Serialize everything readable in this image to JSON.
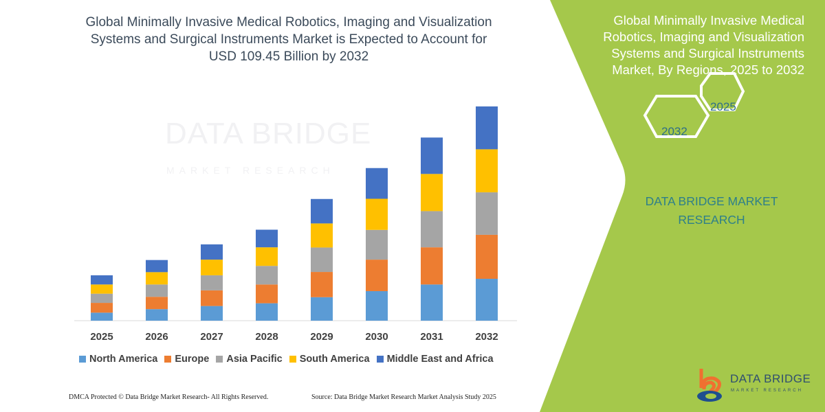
{
  "title": "Global Minimally Invasive Medical Robotics, Imaging and Visualization Systems and Surgical Instruments Market is Expected to Account for USD 109.45 Billion by 2032",
  "side_panel": {
    "title": "Global Minimally Invasive Medical Robotics, Imaging and Visualization Systems and Surgical Instruments Market, By Regions, 2025 to 2032",
    "hex_start": "2025",
    "hex_end": "2032",
    "brand": "DATA BRIDGE MARKET RESEARCH",
    "background_color": "#a5c84b"
  },
  "watermark": {
    "name": "DATA BRIDGE",
    "sub": "MARKET RESEARCH"
  },
  "logo": {
    "name": "DATA BRIDGE",
    "sub": "MARKET RESEARCH"
  },
  "footer": {
    "copyright": "DMCA Protected © Data Bridge Market Research- All Rights Reserved.",
    "source": "Source: Data Bridge Market Research Market Analysis Study 2025"
  },
  "chart_data": {
    "type": "bar",
    "stacked": true,
    "title": "",
    "xlabel": "",
    "ylabel": "",
    "grid": false,
    "legend_position": "bottom",
    "categories": [
      "2025",
      "2026",
      "2027",
      "2028",
      "2029",
      "2030",
      "2031",
      "2032"
    ],
    "series": [
      {
        "name": "North America",
        "color": "#5b9bd5",
        "values": [
          4.1,
          5.9,
          7.5,
          8.9,
          12.0,
          15.1,
          18.5,
          21.4
        ]
      },
      {
        "name": "Europe",
        "color": "#ed7d31",
        "values": [
          5.0,
          6.3,
          8.0,
          9.6,
          12.9,
          16.1,
          19.0,
          22.5
        ]
      },
      {
        "name": "Asia Pacific",
        "color": "#a5a5a5",
        "values": [
          4.7,
          6.3,
          7.7,
          9.5,
          12.5,
          15.2,
          18.5,
          21.7
        ]
      },
      {
        "name": "South America",
        "color": "#ffc000",
        "values": [
          4.7,
          6.3,
          8.0,
          9.5,
          12.3,
          15.9,
          19.0,
          22.0
        ]
      },
      {
        "name": "Middle East and Africa",
        "color": "#4472c4",
        "values": [
          4.7,
          6.2,
          7.8,
          9.0,
          12.5,
          15.7,
          18.6,
          21.9
        ]
      }
    ]
  }
}
